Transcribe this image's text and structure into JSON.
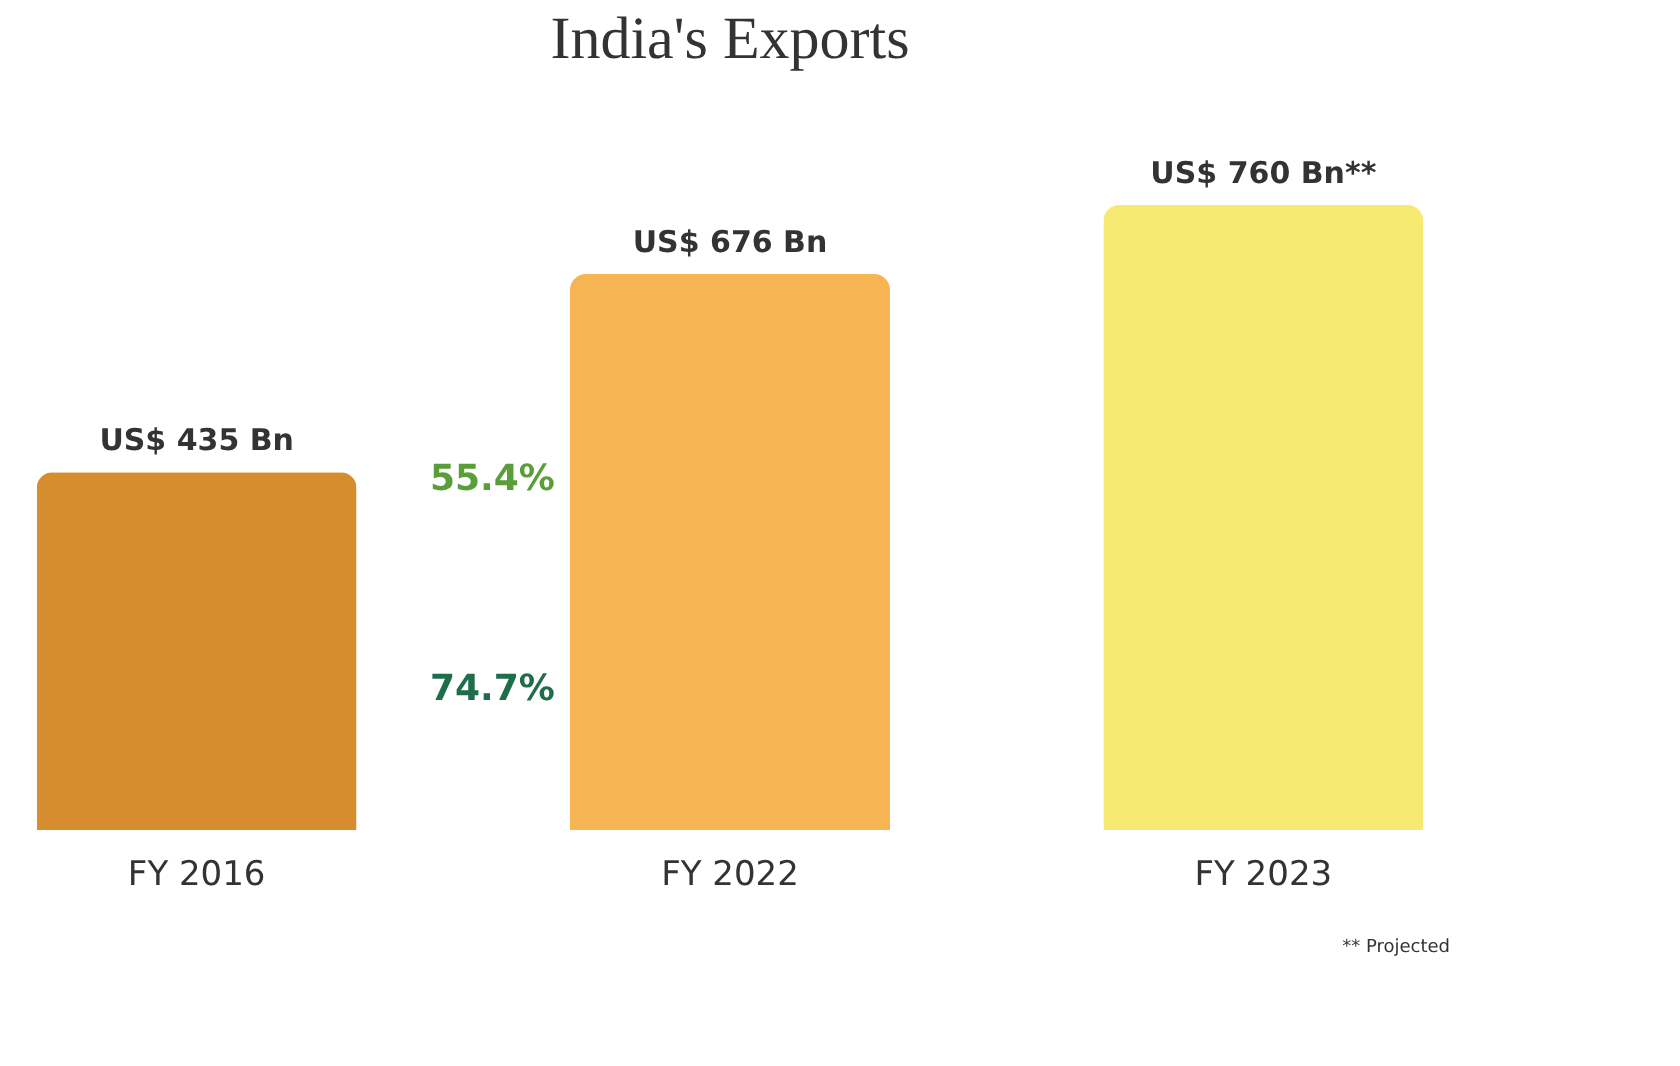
{
  "chart_data": {
    "type": "bar",
    "title": "India's Exports",
    "categories": [
      "FY 2016",
      "FY 2022",
      "FY 2023"
    ],
    "values": [
      435,
      676,
      760
    ],
    "colors": [
      "#d68d2e",
      "#f7b452",
      "#f7ea72"
    ],
    "value_labels": [
      "US$ 435 Bn",
      "US$ 676 Bn",
      "US$ 760 Bn**"
    ],
    "annotations": [
      "55.4%",
      "74.7%",
      "** Projected"
    ]
  }
}
